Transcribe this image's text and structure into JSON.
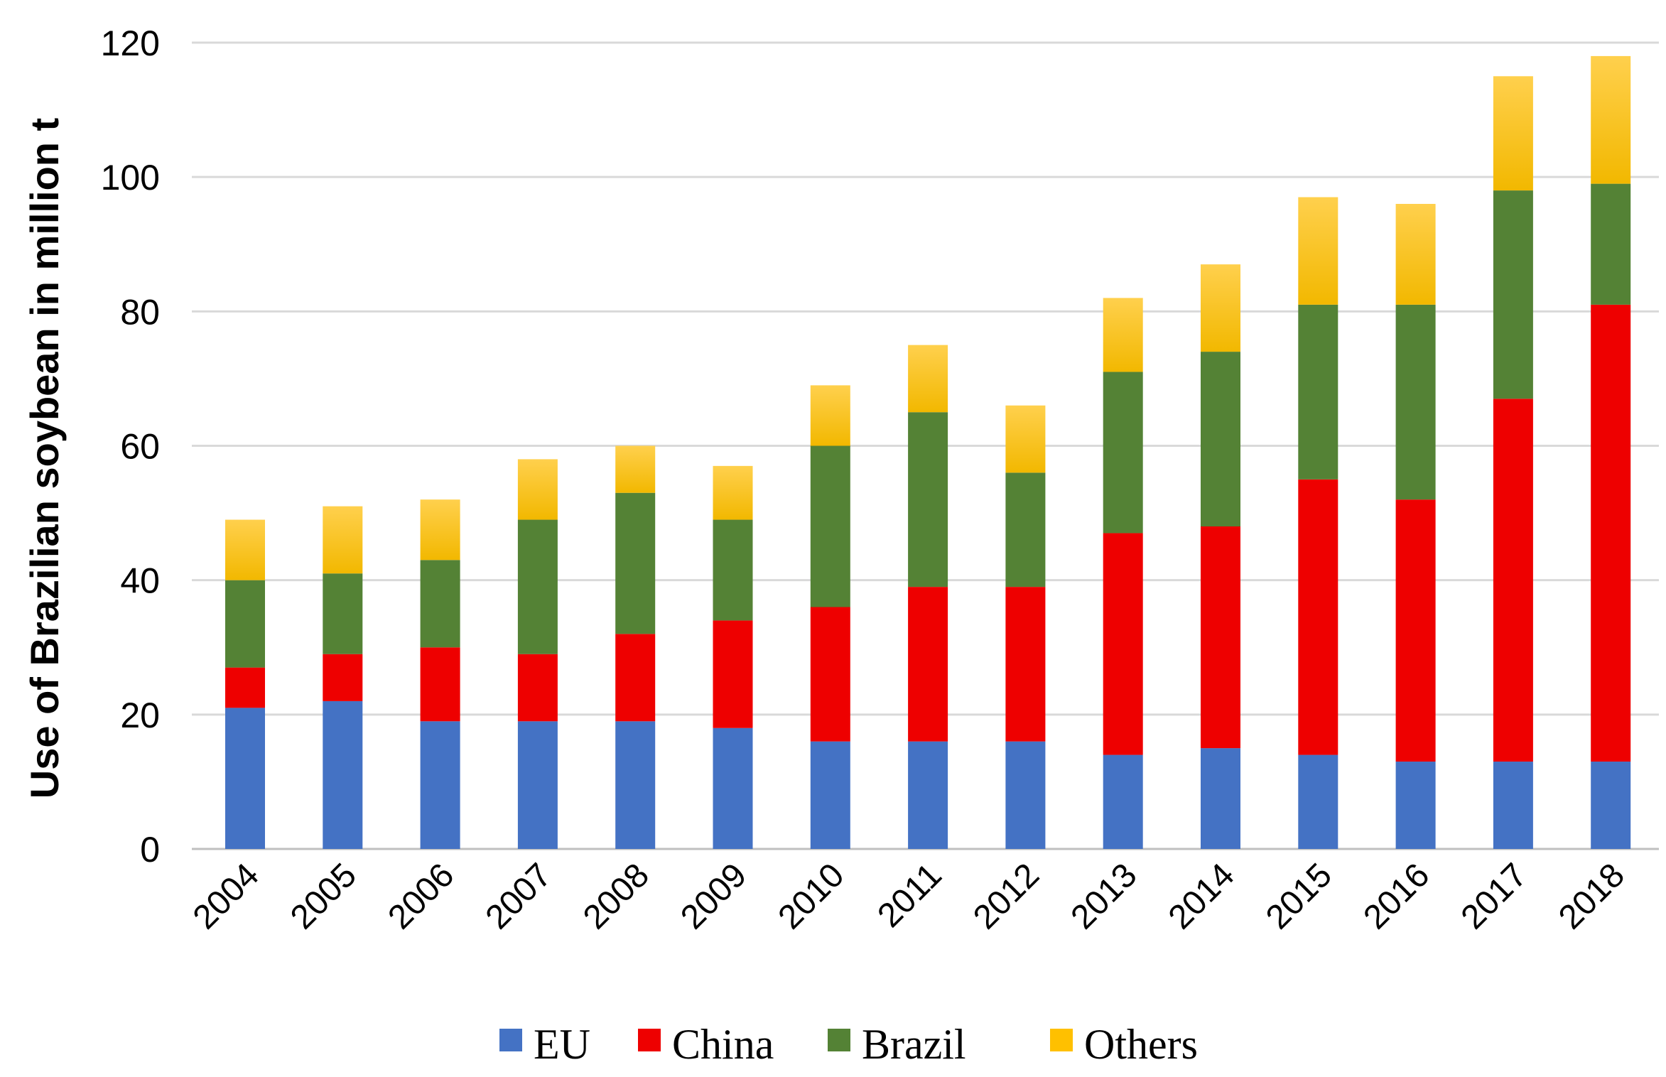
{
  "chart_data": {
    "type": "bar",
    "stacked": true,
    "title": "",
    "xlabel": "",
    "ylabel": "Use of Brazilian soybean in million t",
    "ylim": [
      0,
      120
    ],
    "yticks": [
      0,
      20,
      40,
      60,
      80,
      100,
      120
    ],
    "grid": true,
    "legend_position": "bottom",
    "categories": [
      "2004",
      "2005",
      "2006",
      "2007",
      "2008",
      "2009",
      "2010",
      "2011",
      "2012",
      "2013",
      "2014",
      "2015",
      "2016",
      "2017",
      "2018"
    ],
    "series": [
      {
        "name": "EU",
        "color": "#4472c4",
        "values": [
          21,
          22,
          19,
          19,
          19,
          18,
          16,
          16,
          16,
          14,
          15,
          14,
          13,
          13,
          13
        ]
      },
      {
        "name": "China",
        "color": "#ee0000",
        "values": [
          6,
          7,
          11,
          10,
          13,
          16,
          20,
          23,
          23,
          33,
          33,
          41,
          39,
          54,
          68
        ]
      },
      {
        "name": "Brazil",
        "color": "#548235",
        "values": [
          13,
          12,
          13,
          20,
          21,
          15,
          24,
          26,
          17,
          24,
          26,
          26,
          29,
          31,
          18
        ]
      },
      {
        "name": "Others",
        "color": "#ffc000",
        "values": [
          9,
          10,
          9,
          9,
          7,
          8,
          9,
          10,
          10,
          11,
          13,
          16,
          15,
          17,
          19
        ]
      }
    ]
  }
}
